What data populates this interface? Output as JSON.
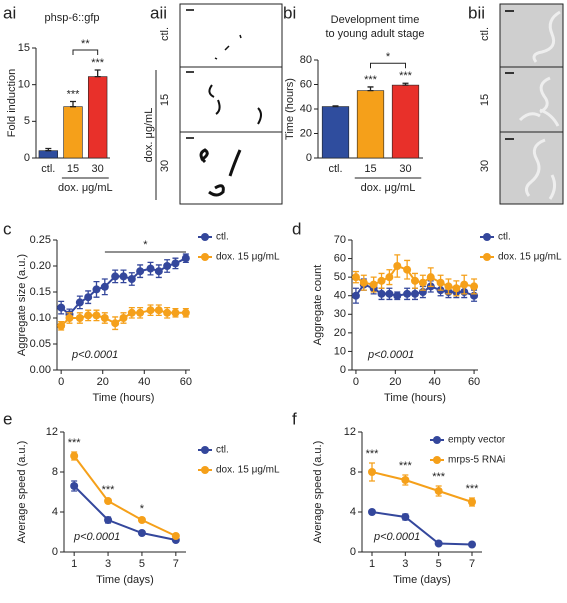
{
  "image_panels": [
    {
      "panel_label": "aii",
      "rows": [
        "ctl.",
        "15",
        "30"
      ],
      "axis_label": "dox. μg/mL"
    },
    {
      "panel_label": "bii",
      "rows": [
        "ctl.",
        "15",
        "30"
      ]
    }
  ],
  "chart_data": [
    {
      "type": "bar",
      "panel_label": "ai",
      "title": [
        "phsp-6::gfp"
      ],
      "y_label": "Fold induction",
      "x_label": "dox. μg/mL",
      "categories": [
        "ctl.",
        "15",
        "30"
      ],
      "values": [
        1.0,
        7.0,
        11.1
      ],
      "errors": [
        0.3,
        0.7,
        0.9
      ],
      "colors": [
        "#2f4d9e",
        "#f5a01a",
        "#e8302a"
      ],
      "ylim": [
        0,
        15
      ],
      "yticks": [
        0,
        5,
        10,
        15
      ],
      "annotations": [
        "***",
        "***",
        "**"
      ]
    },
    {
      "type": "bar",
      "panel_label": "bi",
      "title": [
        "Development time",
        "to young adult stage"
      ],
      "y_label": "Time (hours)",
      "x_label": "dox. μg/mL",
      "categories": [
        "ctl.",
        "15",
        "30"
      ],
      "values": [
        42,
        55,
        59.5
      ],
      "errors": [
        0.5,
        3,
        1.5
      ],
      "colors": [
        "#2f4d9e",
        "#f5a01a",
        "#e8302a"
      ],
      "ylim": [
        0,
        80
      ],
      "yticks": [
        0,
        20,
        40,
        60,
        80
      ],
      "annotations": [
        "***",
        "***",
        "*"
      ]
    },
    {
      "type": "line",
      "panel_label": "c",
      "x_label": "Time (hours)",
      "y_label": "Aggregate size (a.u.)",
      "p_value": "p<0.0001",
      "x": [
        0,
        4,
        9,
        13,
        17,
        21,
        26,
        30,
        34,
        38,
        43,
        47,
        51,
        55,
        60
      ],
      "series": [
        {
          "name": "ctl.",
          "color": "#34479c",
          "values": [
            0.12,
            0.107,
            0.13,
            0.14,
            0.155,
            0.16,
            0.18,
            0.18,
            0.175,
            0.19,
            0.195,
            0.19,
            0.2,
            0.205,
            0.215
          ],
          "errors": [
            0.012,
            0.01,
            0.012,
            0.012,
            0.015,
            0.015,
            0.012,
            0.012,
            0.012,
            0.012,
            0.012,
            0.012,
            0.012,
            0.01,
            0.008
          ]
        },
        {
          "name": "dox. 15 μg/mL",
          "color": "#f5a01a",
          "values": [
            0.085,
            0.1,
            0.1,
            0.105,
            0.105,
            0.1,
            0.09,
            0.1,
            0.11,
            0.11,
            0.115,
            0.115,
            0.11,
            0.11,
            0.11
          ],
          "errors": [
            0.008,
            0.01,
            0.01,
            0.01,
            0.01,
            0.01,
            0.012,
            0.01,
            0.01,
            0.01,
            0.01,
            0.01,
            0.01,
            0.008,
            0.008
          ]
        }
      ],
      "xlim": [
        -2,
        62
      ],
      "xticks": [
        0,
        20,
        40,
        60
      ],
      "ylim": [
        0,
        0.25
      ],
      "yticks": [
        {
          "value": 0,
          "label": "0.00"
        },
        {
          "value": 0.05,
          "label": "0.05"
        },
        {
          "value": 0.1,
          "label": "0.10"
        },
        {
          "value": 0.15,
          "label": "0.15"
        },
        {
          "value": 0.2,
          "label": "0.20"
        },
        {
          "value": 0.25,
          "label": "0.25"
        }
      ],
      "annotations": [
        "*"
      ]
    },
    {
      "type": "line",
      "panel_label": "d",
      "x_label": "Time (hours)",
      "y_label": "Aggregate count",
      "p_value": "p<0.0001",
      "x": [
        0,
        4,
        9,
        13,
        17,
        21,
        26,
        30,
        34,
        38,
        43,
        47,
        51,
        55,
        60
      ],
      "series": [
        {
          "name": "ctl.",
          "color": "#34479c",
          "values": [
            40,
            46,
            44,
            41,
            41,
            40,
            41,
            41,
            42,
            45,
            43,
            42,
            42,
            42,
            40
          ],
          "errors": [
            4,
            3,
            3,
            3,
            3,
            2,
            3,
            3,
            3,
            3,
            3,
            3,
            3,
            3,
            3
          ]
        },
        {
          "name": "dox. 15 μg/mL",
          "color": "#f5a01a",
          "values": [
            50,
            47,
            46,
            48,
            50,
            56,
            54,
            48,
            47,
            50,
            47,
            45,
            44,
            46,
            45
          ],
          "errors": [
            3,
            4,
            4,
            4,
            4,
            6,
            5,
            4,
            4,
            5,
            4,
            4,
            4,
            5,
            4
          ]
        }
      ],
      "xlim": [
        -2,
        62
      ],
      "xticks": [
        0,
        20,
        40,
        60
      ],
      "ylim": [
        0,
        70
      ],
      "yticks": [
        0,
        10,
        20,
        30,
        40,
        50,
        60,
        70
      ],
      "annotations": []
    },
    {
      "type": "line",
      "panel_label": "e",
      "x_label": "Time (days)",
      "y_label": "Average speed (a.u.)",
      "p_value": "p<0.0001",
      "x": [
        1,
        3,
        5,
        7
      ],
      "series": [
        {
          "name": "ctl.",
          "color": "#34479c",
          "values": [
            6.6,
            3.2,
            1.9,
            1.2
          ],
          "errors": [
            0.5,
            0.3,
            0.15,
            0.1
          ]
        },
        {
          "name": "dox. 15 μg/mL",
          "color": "#f5a01a",
          "values": [
            9.6,
            5.1,
            3.2,
            1.6
          ],
          "errors": [
            0.4,
            0.2,
            0.2,
            0.1
          ]
        }
      ],
      "xlim": [
        0.4,
        7.6
      ],
      "xticks": [
        1,
        3,
        5,
        7
      ],
      "ylim": [
        0,
        12
      ],
      "yticks": [
        0,
        4,
        8,
        12
      ],
      "annotations": [
        "***",
        "***",
        "*"
      ]
    },
    {
      "type": "line",
      "panel_label": "f",
      "x_label": "Time (days)",
      "y_label": "Average speed (a.u.)",
      "p_value": "p<0.0001",
      "x": [
        1,
        3,
        5,
        7
      ],
      "series": [
        {
          "name": "empty vector",
          "color": "#34479c",
          "values": [
            4.0,
            3.5,
            0.85,
            0.75
          ],
          "errors": [
            0.15,
            0.3,
            0.1,
            0.1
          ]
        },
        {
          "name": "mrps-5 RNAi",
          "color": "#f5a01a",
          "values": [
            8.0,
            7.2,
            6.1,
            5.0
          ],
          "errors": [
            0.9,
            0.5,
            0.5,
            0.4
          ]
        }
      ],
      "xlim": [
        0.4,
        7.6
      ],
      "xticks": [
        1,
        3,
        5,
        7
      ],
      "ylim": [
        0,
        12
      ],
      "yticks": [
        0,
        4,
        8,
        12
      ],
      "annotations": [
        "***",
        "***",
        "***",
        "***"
      ]
    }
  ]
}
